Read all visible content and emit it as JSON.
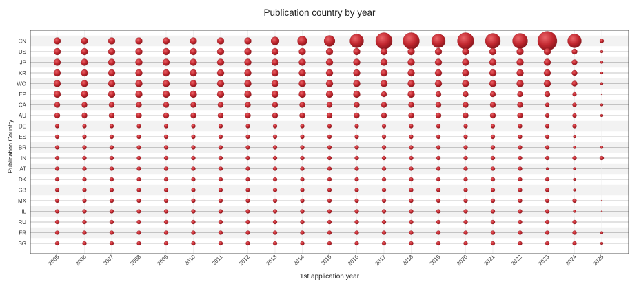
{
  "chart_data": {
    "type": "scatter",
    "title": "Publication country by year",
    "xlabel": "1st application year",
    "ylabel": "Publication Country",
    "x": [
      "2005",
      "2006",
      "2007",
      "2008",
      "2009",
      "2010",
      "2011",
      "2012",
      "2013",
      "2014",
      "2015",
      "2016",
      "2017",
      "2018",
      "2019",
      "2020",
      "2021",
      "2022",
      "2023",
      "2024",
      "2025"
    ],
    "y": [
      "CN",
      "US",
      "JP",
      "KR",
      "WO",
      "EP",
      "CA",
      "AU",
      "DE",
      "ES",
      "BR",
      "IN",
      "AT",
      "DK",
      "GB",
      "MX",
      "IL",
      "RU",
      "FR",
      "SG"
    ],
    "grid": true,
    "bubble_color": "#c0262e",
    "band_color": "#f2f2f2",
    "series": [
      {
        "y": "CN",
        "values": [
          5,
          5,
          5,
          5,
          5,
          5,
          5,
          5,
          6,
          7,
          8,
          10,
          12,
          12,
          10,
          12,
          11,
          11,
          14,
          10,
          3
        ]
      },
      {
        "y": "US",
        "values": [
          5,
          5,
          5,
          5,
          5,
          5,
          5,
          5,
          5,
          5,
          5,
          5,
          5,
          5,
          5,
          5,
          5,
          5,
          5,
          4,
          2
        ]
      },
      {
        "y": "JP",
        "values": [
          5,
          5,
          5,
          5,
          5,
          5,
          5,
          5,
          5,
          5,
          5,
          5,
          5,
          5,
          5,
          5,
          5,
          5,
          5,
          4,
          2
        ]
      },
      {
        "y": "KR",
        "values": [
          5,
          5,
          5,
          5,
          5,
          5,
          5,
          5,
          5,
          5,
          5,
          5,
          5,
          5,
          5,
          5,
          5,
          5,
          5,
          4,
          2
        ]
      },
      {
        "y": "WO",
        "values": [
          5,
          5,
          5,
          5,
          5,
          5,
          5,
          5,
          5,
          5,
          5,
          5,
          5,
          5,
          5,
          5,
          5,
          5,
          5,
          4,
          2
        ]
      },
      {
        "y": "EP",
        "values": [
          5,
          5,
          5,
          5,
          5,
          5,
          5,
          5,
          5,
          5,
          5,
          5,
          4,
          5,
          4,
          4,
          4,
          4,
          4,
          3,
          1
        ]
      },
      {
        "y": "CA",
        "values": [
          4,
          4,
          4,
          4,
          4,
          4,
          4,
          4,
          4,
          4,
          4,
          4,
          4,
          4,
          4,
          4,
          4,
          4,
          3,
          3,
          2
        ]
      },
      {
        "y": "AU",
        "values": [
          4,
          4,
          4,
          4,
          4,
          4,
          4,
          4,
          4,
          4,
          4,
          4,
          4,
          4,
          4,
          4,
          4,
          4,
          3,
          3,
          2
        ]
      },
      {
        "y": "DE",
        "values": [
          3,
          3,
          3,
          3,
          3,
          3,
          3,
          3,
          3,
          3,
          3,
          3,
          3,
          3,
          3,
          3,
          3,
          3,
          3,
          3,
          0
        ]
      },
      {
        "y": "ES",
        "values": [
          3,
          3,
          3,
          3,
          3,
          3,
          3,
          3,
          3,
          3,
          3,
          3,
          3,
          3,
          3,
          3,
          3,
          3,
          3,
          2,
          0
        ]
      },
      {
        "y": "BR",
        "values": [
          3,
          3,
          3,
          3,
          3,
          3,
          3,
          3,
          3,
          3,
          3,
          3,
          3,
          3,
          3,
          3,
          3,
          3,
          3,
          2,
          2
        ]
      },
      {
        "y": "IN",
        "values": [
          3,
          3,
          3,
          3,
          3,
          3,
          3,
          3,
          3,
          3,
          3,
          3,
          3,
          3,
          3,
          3,
          3,
          3,
          3,
          3,
          3
        ]
      },
      {
        "y": "AT",
        "values": [
          3,
          3,
          3,
          3,
          3,
          3,
          3,
          3,
          3,
          3,
          3,
          3,
          3,
          3,
          3,
          3,
          3,
          3,
          2,
          2,
          0
        ]
      },
      {
        "y": "DK",
        "values": [
          3,
          3,
          3,
          3,
          3,
          3,
          3,
          3,
          3,
          3,
          3,
          3,
          3,
          3,
          3,
          3,
          3,
          3,
          3,
          2,
          0
        ]
      },
      {
        "y": "GB",
        "values": [
          3,
          3,
          3,
          3,
          3,
          3,
          3,
          3,
          3,
          3,
          3,
          3,
          3,
          3,
          3,
          3,
          3,
          3,
          3,
          2,
          0
        ]
      },
      {
        "y": "MX",
        "values": [
          3,
          3,
          3,
          3,
          3,
          3,
          3,
          3,
          3,
          3,
          3,
          3,
          3,
          3,
          3,
          3,
          3,
          3,
          3,
          3,
          1
        ]
      },
      {
        "y": "IL",
        "values": [
          3,
          3,
          3,
          3,
          3,
          3,
          3,
          3,
          3,
          3,
          3,
          3,
          3,
          3,
          3,
          3,
          3,
          3,
          3,
          2,
          1
        ]
      },
      {
        "y": "RU",
        "values": [
          3,
          3,
          3,
          3,
          3,
          3,
          3,
          3,
          3,
          3,
          3,
          3,
          3,
          3,
          3,
          3,
          3,
          3,
          3,
          3,
          0
        ]
      },
      {
        "y": "FR",
        "values": [
          3,
          3,
          3,
          3,
          3,
          3,
          3,
          3,
          3,
          3,
          3,
          3,
          3,
          3,
          3,
          3,
          3,
          3,
          3,
          3,
          2
        ]
      },
      {
        "y": "SG",
        "values": [
          3,
          3,
          3,
          3,
          3,
          3,
          3,
          3,
          3,
          3,
          3,
          3,
          3,
          3,
          3,
          3,
          3,
          3,
          3,
          3,
          2
        ]
      }
    ]
  }
}
